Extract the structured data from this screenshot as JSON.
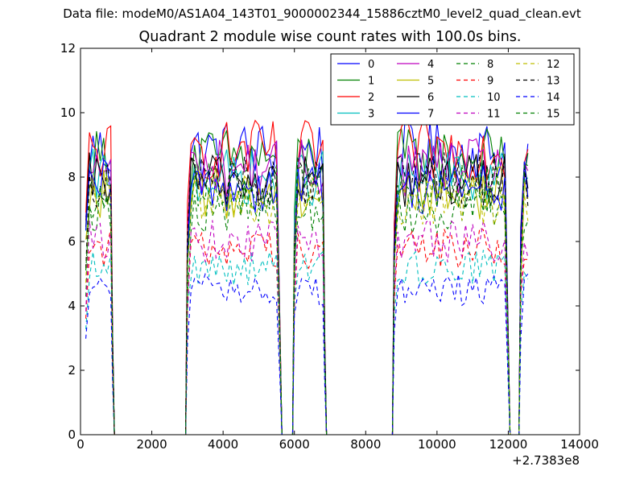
{
  "chart_data": {
    "type": "line",
    "suptitle": "Data file: modeM0/AS1A04_143T01_9000002344_15886cztM0_level2_quad_clean.evt",
    "title": "Quadrant 2 module wise count rates with 100.0s bins.",
    "xlabel": "",
    "ylabel": "",
    "x_offset_label": "+2.7383e8",
    "xlim": [
      0,
      14000
    ],
    "ylim": [
      0,
      12
    ],
    "xticks": [
      "0",
      "2000",
      "4000",
      "6000",
      "8000",
      "10000",
      "12000",
      "14000"
    ],
    "yticks": [
      "0",
      "2",
      "4",
      "6",
      "8",
      "10",
      "12"
    ],
    "legend_position": "top-right",
    "segments": [
      {
        "start": 150,
        "end": 850,
        "ramp_end": 950
      },
      {
        "start": 3000,
        "end": 5550,
        "ramp_end": 5650
      },
      {
        "start": 6000,
        "end": 6800,
        "ramp_end": 6900
      },
      {
        "start": 8800,
        "end": 11950,
        "ramp_end": 12050
      },
      {
        "start": 12350,
        "end": 12550,
        "ramp_end": null
      }
    ],
    "series": [
      {
        "name": "0",
        "color": "#0000ff",
        "dash": false,
        "level": 8.8
      },
      {
        "name": "1",
        "color": "#008000",
        "dash": false,
        "level": 8.6
      },
      {
        "name": "2",
        "color": "#ff0000",
        "dash": false,
        "level": 8.8
      },
      {
        "name": "3",
        "color": "#00bfbf",
        "dash": false,
        "level": 8.0
      },
      {
        "name": "4",
        "color": "#bf00bf",
        "dash": false,
        "level": 8.3
      },
      {
        "name": "5",
        "color": "#bfbf00",
        "dash": false,
        "level": 7.5
      },
      {
        "name": "6",
        "color": "#000000",
        "dash": false,
        "level": 7.9
      },
      {
        "name": "7",
        "color": "#0000ff",
        "dash": false,
        "level": 7.7
      },
      {
        "name": "8",
        "color": "#008000",
        "dash": true,
        "level": 7.0
      },
      {
        "name": "9",
        "color": "#ff0000",
        "dash": true,
        "level": 5.8
      },
      {
        "name": "10",
        "color": "#00bfbf",
        "dash": true,
        "level": 5.2
      },
      {
        "name": "11",
        "color": "#bf00bf",
        "dash": true,
        "level": 6.0
      },
      {
        "name": "12",
        "color": "#bfbf00",
        "dash": true,
        "level": 7.3
      },
      {
        "name": "13",
        "color": "#000000",
        "dash": true,
        "level": 7.9
      },
      {
        "name": "14",
        "color": "#0000ff",
        "dash": true,
        "level": 4.5
      },
      {
        "name": "15",
        "color": "#008000",
        "dash": true,
        "level": 7.6
      }
    ]
  }
}
